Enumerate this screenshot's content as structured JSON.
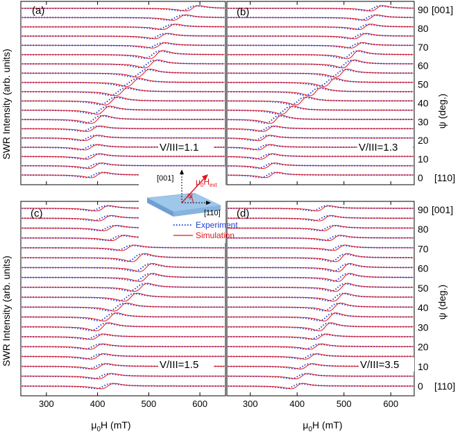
{
  "figure": {
    "ylabel_prefix": "SWR Intensity (arb. units)",
    "psi_axis_label": "ψ (deg.)",
    "x_axis_label_main": "μ",
    "x_axis_label_sub": "0",
    "x_axis_label_tail": "H (mT)",
    "direction_top": "[001]",
    "direction_bottom": "[110]"
  },
  "inset": {
    "axis_001": "[001]",
    "axis_110": "[110]",
    "field_label_main": "μ",
    "field_label_sub": "0",
    "field_label_H": "H",
    "field_label_ext": "ext",
    "angle_label": "ψ",
    "legend_experiment": "Experiment",
    "legend_simulation": "Simulation",
    "colors": {
      "experiment": "#1f3fd6",
      "simulation": "#e0141e",
      "slab": "#9ec7ea"
    }
  },
  "chart_data": [
    {
      "type": "line",
      "panel": "(a)",
      "annotation": "V/III=1.1",
      "xlabel": "μ0H (mT)",
      "ylabel": "SWR Intensity (arb. units)",
      "xlim": [
        250,
        650
      ],
      "xticks": [
        300,
        400,
        500,
        600
      ],
      "psi_deg": [
        0,
        5,
        10,
        15,
        20,
        25,
        30,
        35,
        40,
        45,
        50,
        55,
        60,
        65,
        70,
        75,
        80,
        85,
        90
      ],
      "resonance_center_mT": [
        400,
        396,
        392,
        388,
        388,
        392,
        400,
        412,
        428,
        448,
        470,
        490,
        505,
        515,
        520,
        525,
        540,
        560,
        585
      ],
      "series": [
        {
          "name": "Experiment",
          "style": "dotted"
        },
        {
          "name": "Simulation",
          "style": "solid"
        }
      ]
    },
    {
      "type": "line",
      "panel": "(b)",
      "annotation": "V/III=1.3",
      "xlabel": "μ0H (mT)",
      "xlim": [
        250,
        650
      ],
      "xticks": [
        300,
        400,
        500,
        600
      ],
      "psi_deg": [
        0,
        5,
        10,
        15,
        20,
        25,
        30,
        35,
        40,
        45,
        50,
        55,
        60,
        65,
        70,
        75,
        80,
        85,
        90
      ],
      "resonance_center_mT": [
        345,
        340,
        335,
        330,
        330,
        340,
        355,
        380,
        410,
        440,
        470,
        495,
        510,
        520,
        528,
        535,
        545,
        558,
        570
      ],
      "series": [
        {
          "name": "Experiment",
          "style": "dotted"
        },
        {
          "name": "Simulation",
          "style": "solid"
        }
      ]
    },
    {
      "type": "line",
      "panel": "(c)",
      "annotation": "V/III=1.5",
      "xlabel": "μ0H (mT)",
      "ylabel": "SWR Intensity (arb. units)",
      "xlim": [
        250,
        650
      ],
      "xticks": [
        300,
        400,
        500,
        600
      ],
      "psi_deg": [
        0,
        5,
        10,
        15,
        20,
        25,
        30,
        35,
        40,
        45,
        50,
        55,
        60,
        65,
        70,
        75,
        80,
        85,
        90
      ],
      "resonance_center_mT": [
        420,
        415,
        405,
        400,
        398,
        400,
        410,
        425,
        445,
        465,
        485,
        495,
        495,
        480,
        460,
        440,
        425,
        415,
        410
      ],
      "series": [
        {
          "name": "Experiment",
          "style": "dotted"
        },
        {
          "name": "Simulation",
          "style": "solid"
        }
      ]
    },
    {
      "type": "line",
      "panel": "(d)",
      "annotation": "V/III=3.5",
      "xlabel": "μ0H (mT)",
      "xlim": [
        250,
        650
      ],
      "xticks": [
        300,
        400,
        500,
        600
      ],
      "psi_deg": [
        0,
        5,
        10,
        15,
        20,
        25,
        30,
        35,
        40,
        45,
        50,
        55,
        60,
        65,
        70,
        75,
        80,
        85,
        90
      ],
      "resonance_center_mT": [
        400,
        410,
        420,
        430,
        440,
        450,
        460,
        470,
        480,
        490,
        495,
        500,
        500,
        495,
        490,
        480,
        470,
        460,
        455
      ],
      "series": [
        {
          "name": "Experiment",
          "style": "dotted"
        },
        {
          "name": "Simulation",
          "style": "solid"
        }
      ]
    }
  ],
  "psi_ticks": [
    {
      "label": "0",
      "extra": "[110]"
    },
    {
      "label": "10",
      "extra": ""
    },
    {
      "label": "20",
      "extra": ""
    },
    {
      "label": "30",
      "extra": ""
    },
    {
      "label": "40",
      "extra": ""
    },
    {
      "label": "50",
      "extra": ""
    },
    {
      "label": "60",
      "extra": ""
    },
    {
      "label": "70",
      "extra": ""
    },
    {
      "label": "80",
      "extra": ""
    },
    {
      "label": "90",
      "extra": "[001]"
    }
  ]
}
